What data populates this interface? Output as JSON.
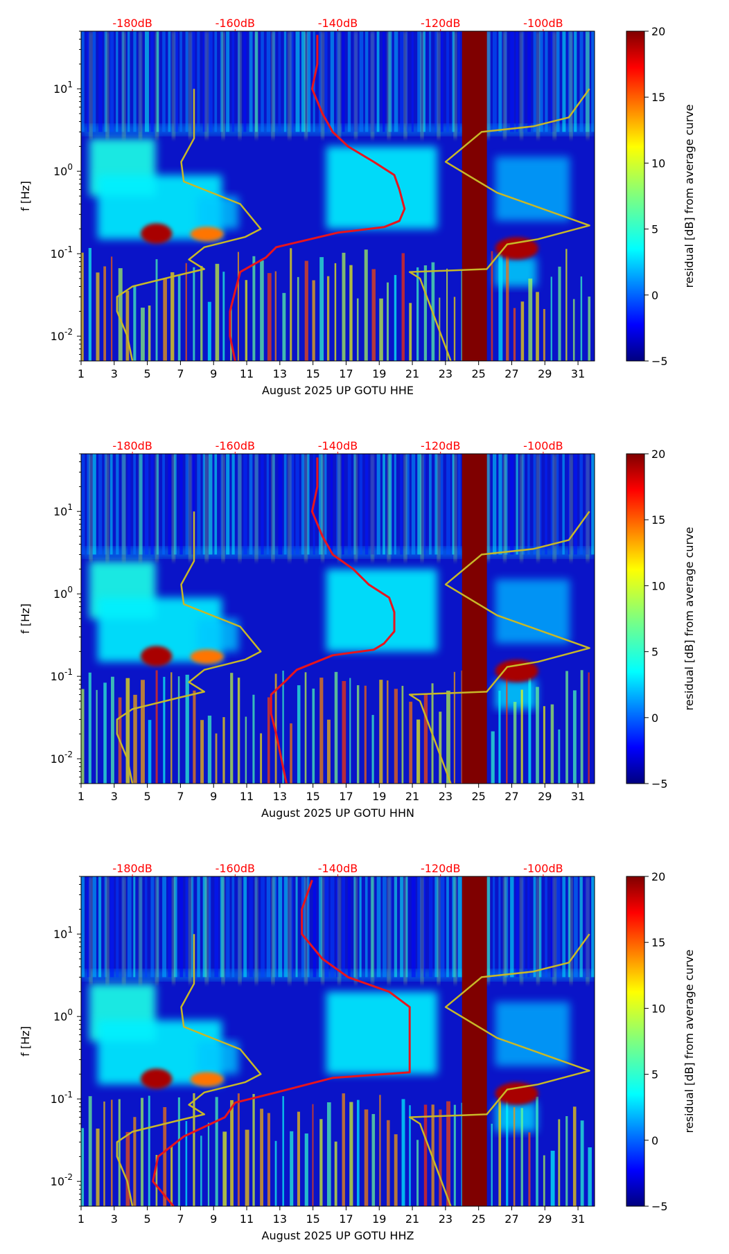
{
  "colorbar": {
    "label": "residual [dB] from average curve",
    "min": -5,
    "max": 20,
    "ticks": [
      20,
      15,
      10,
      5,
      0,
      -5
    ],
    "tick_labels": [
      "20",
      "15",
      "10",
      "5",
      "0",
      "−5"
    ],
    "colormap": "jet"
  },
  "chart_data": [
    {
      "type": "heatmap",
      "xlabel": "August 2025 UP GOTU  HHE",
      "ylabel": "f [Hz]",
      "x_ticks": [
        "1",
        "3",
        "5",
        "7",
        "9",
        "11",
        "13",
        "15",
        "17",
        "19",
        "21",
        "23",
        "25",
        "27",
        "29",
        "31"
      ],
      "x_range": [
        1,
        32
      ],
      "y_scale": "log",
      "y_range": [
        0.005,
        50
      ],
      "y_tick_labels": [
        "10^1",
        "10^0",
        "10^-1",
        "10^-2"
      ],
      "top_axis_labels": [
        "-180dB",
        "-160dB",
        "-140dB",
        "-120dB",
        "-100dB"
      ],
      "top_axis_values": [
        -180,
        -160,
        -140,
        -120,
        -100
      ],
      "data_gap_days": [
        24,
        25.5
      ],
      "colors": {
        "red_curve": "#e8141c",
        "yellow_curve": "#c8b828",
        "gap": "#7f0000",
        "db_label": "#ff0000"
      },
      "series": [
        {
          "points": [
            [
              -144,
              45
            ],
            [
              -144,
              20
            ],
            [
              -145,
              10
            ],
            [
              -143,
              5
            ],
            [
              -141,
              3
            ],
            [
              -138,
              2
            ],
            [
              -133,
              1.3
            ],
            [
              -129,
              0.9
            ],
            [
              -128,
              0.6
            ],
            [
              -127,
              0.35
            ],
            [
              -128,
              0.25
            ],
            [
              -131,
              0.21
            ],
            [
              -140,
              0.18
            ],
            [
              -152,
              0.12
            ],
            [
              -154,
              0.09
            ],
            [
              -159,
              0.06
            ],
            [
              -160,
              0.035
            ],
            [
              -161,
              0.02
            ],
            [
              -161,
              0.01
            ],
            [
              -160,
              0.005
            ]
          ]
        },
        {
          "points": [
            [
              -180,
              0.005
            ],
            [
              -181,
              0.01
            ],
            [
              -183,
              0.02
            ],
            [
              -183,
              0.03
            ],
            [
              -180,
              0.04
            ],
            [
              -171,
              0.055
            ],
            [
              -166,
              0.065
            ],
            [
              -169,
              0.085
            ],
            [
              -166,
              0.12
            ],
            [
              -158,
              0.16
            ],
            [
              -155,
              0.2
            ],
            [
              -159,
              0.4
            ],
            [
              -170,
              0.75
            ],
            [
              -170.5,
              1.3
            ],
            [
              -168,
              2.5
            ],
            [
              -168,
              10
            ]
          ]
        },
        {
          "points": [
            [
              -118,
              0.005
            ],
            [
              -124,
              0.05
            ],
            [
              -126,
              0.06
            ],
            [
              -111,
              0.065
            ],
            [
              -107,
              0.13
            ],
            [
              -101,
              0.15
            ],
            [
              -91,
              0.22
            ],
            [
              -109,
              0.55
            ],
            [
              -119,
              1.3
            ],
            [
              -112,
              3
            ],
            [
              -102,
              3.5
            ],
            [
              -95,
              4.5
            ],
            [
              -91,
              10
            ]
          ]
        }
      ]
    },
    {
      "type": "heatmap",
      "xlabel": "August 2025 UP GOTU  HHN",
      "ylabel": "f [Hz]",
      "x_ticks": [
        "1",
        "3",
        "5",
        "7",
        "9",
        "11",
        "13",
        "15",
        "17",
        "19",
        "21",
        "23",
        "25",
        "27",
        "29",
        "31"
      ],
      "x_range": [
        1,
        32
      ],
      "y_scale": "log",
      "y_range": [
        0.005,
        50
      ],
      "y_tick_labels": [
        "10^1",
        "10^0",
        "10^-1",
        "10^-2"
      ],
      "top_axis_labels": [
        "-180dB",
        "-160dB",
        "-140dB",
        "-120dB",
        "-100dB"
      ],
      "top_axis_values": [
        -180,
        -160,
        -140,
        -120,
        -100
      ],
      "data_gap_days": [
        24,
        25.5
      ],
      "colors": {
        "red_curve": "#e8141c",
        "yellow_curve": "#c8b828",
        "gap": "#7f0000",
        "db_label": "#ff0000"
      },
      "series": [
        {
          "points": [
            [
              -144,
              45
            ],
            [
              -144,
              20
            ],
            [
              -145,
              10
            ],
            [
              -143,
              5
            ],
            [
              -141,
              3
            ],
            [
              -137,
              2
            ],
            [
              -134,
              1.3
            ],
            [
              -130,
              0.9
            ],
            [
              -129,
              0.6
            ],
            [
              -129,
              0.35
            ],
            [
              -131,
              0.25
            ],
            [
              -133,
              0.21
            ],
            [
              -141,
              0.18
            ],
            [
              -148,
              0.12
            ],
            [
              -150,
              0.09
            ],
            [
              -153,
              0.06
            ],
            [
              -153,
              0.035
            ],
            [
              -152,
              0.02
            ],
            [
              -151,
              0.01
            ],
            [
              -150,
              0.005
            ]
          ]
        },
        {
          "points": [
            [
              -180,
              0.005
            ],
            [
              -181,
              0.01
            ],
            [
              -183,
              0.02
            ],
            [
              -183,
              0.03
            ],
            [
              -180,
              0.04
            ],
            [
              -171,
              0.055
            ],
            [
              -166,
              0.065
            ],
            [
              -169,
              0.085
            ],
            [
              -166,
              0.12
            ],
            [
              -158,
              0.16
            ],
            [
              -155,
              0.2
            ],
            [
              -159,
              0.4
            ],
            [
              -170,
              0.75
            ],
            [
              -170.5,
              1.3
            ],
            [
              -168,
              2.5
            ],
            [
              -168,
              10
            ]
          ]
        },
        {
          "points": [
            [
              -118,
              0.005
            ],
            [
              -124,
              0.05
            ],
            [
              -126,
              0.06
            ],
            [
              -111,
              0.065
            ],
            [
              -107,
              0.13
            ],
            [
              -101,
              0.15
            ],
            [
              -91,
              0.22
            ],
            [
              -109,
              0.55
            ],
            [
              -119,
              1.3
            ],
            [
              -112,
              3
            ],
            [
              -102,
              3.5
            ],
            [
              -95,
              4.5
            ],
            [
              -91,
              10
            ]
          ]
        }
      ]
    },
    {
      "type": "heatmap",
      "xlabel": "August 2025 UP GOTU  HHZ",
      "ylabel": "f [Hz]",
      "x_ticks": [
        "1",
        "3",
        "5",
        "7",
        "9",
        "11",
        "13",
        "15",
        "17",
        "19",
        "21",
        "23",
        "25",
        "27",
        "29",
        "31"
      ],
      "x_range": [
        1,
        32
      ],
      "y_scale": "log",
      "y_range": [
        0.005,
        50
      ],
      "y_tick_labels": [
        "10^1",
        "10^0",
        "10^-1",
        "10^-2"
      ],
      "top_axis_labels": [
        "-180dB",
        "-160dB",
        "-140dB",
        "-120dB",
        "-100dB"
      ],
      "top_axis_values": [
        -180,
        -160,
        -140,
        -120,
        -100
      ],
      "data_gap_days": [
        24,
        25.5
      ],
      "colors": {
        "red_curve": "#e8141c",
        "yellow_curve": "#c8b828",
        "gap": "#7f0000",
        "db_label": "#ff0000"
      },
      "series": [
        {
          "points": [
            [
              -145,
              45
            ],
            [
              -147,
              20
            ],
            [
              -147,
              10
            ],
            [
              -143,
              5
            ],
            [
              -138,
              3
            ],
            [
              -130,
              2
            ],
            [
              -126,
              1.3
            ],
            [
              -126,
              0.9
            ],
            [
              -126,
              0.6
            ],
            [
              -126,
              0.35
            ],
            [
              -126,
              0.25
            ],
            [
              -126,
              0.21
            ],
            [
              -141,
              0.18
            ],
            [
              -152,
              0.12
            ],
            [
              -160,
              0.09
            ],
            [
              -162,
              0.06
            ],
            [
              -170,
              0.035
            ],
            [
              -175,
              0.02
            ],
            [
              -176,
              0.01
            ],
            [
              -172,
              0.005
            ]
          ]
        },
        {
          "points": [
            [
              -180,
              0.005
            ],
            [
              -181,
              0.01
            ],
            [
              -183,
              0.02
            ],
            [
              -183,
              0.03
            ],
            [
              -180,
              0.04
            ],
            [
              -171,
              0.055
            ],
            [
              -166,
              0.065
            ],
            [
              -169,
              0.085
            ],
            [
              -166,
              0.12
            ],
            [
              -158,
              0.16
            ],
            [
              -155,
              0.2
            ],
            [
              -159,
              0.4
            ],
            [
              -170,
              0.75
            ],
            [
              -170.5,
              1.3
            ],
            [
              -168,
              2.5
            ],
            [
              -168,
              10
            ]
          ]
        },
        {
          "points": [
            [
              -118,
              0.005
            ],
            [
              -124,
              0.05
            ],
            [
              -126,
              0.06
            ],
            [
              -111,
              0.065
            ],
            [
              -107,
              0.13
            ],
            [
              -101,
              0.15
            ],
            [
              -91,
              0.22
            ],
            [
              -109,
              0.55
            ],
            [
              -119,
              1.3
            ],
            [
              -112,
              3
            ],
            [
              -102,
              3.5
            ],
            [
              -95,
              4.5
            ],
            [
              -91,
              10
            ]
          ]
        }
      ]
    }
  ]
}
